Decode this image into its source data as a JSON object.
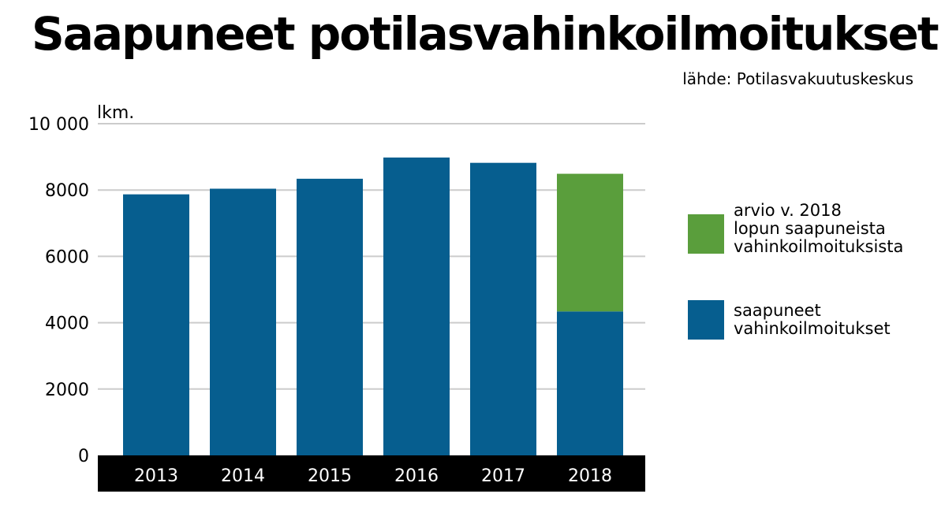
{
  "title": "Saapuneet potilasvahinkoilmoitukset",
  "source": "lähde: Potilasvakuutuskeskus",
  "colors": {
    "received": "#065e8f",
    "estimate": "#5a9e3c",
    "axis_band": "#000000",
    "grid": "#cccccc"
  },
  "legend": {
    "estimate_label": "arvio v. 2018\nlopun saapuneista\nvahinkoilmoituksista",
    "received_label": "saapuneet\nvahinkoilmoitukset"
  },
  "chart_data": {
    "type": "bar",
    "stacked": true,
    "categories": [
      "2013",
      "2014",
      "2015",
      "2016",
      "2017",
      "2018"
    ],
    "series": [
      {
        "name": "saapuneet vahinkoilmoitukset",
        "values": [
          7870,
          8040,
          8340,
          8980,
          8820,
          4340
        ]
      },
      {
        "name": "arvio v. 2018 lopun saapuneista vahinkoilmoituksista",
        "values": [
          0,
          0,
          0,
          0,
          0,
          4150
        ]
      }
    ],
    "ylabel": "lkm.",
    "ylim": [
      0,
      10000
    ],
    "yticks": [
      0,
      2000,
      4000,
      6000,
      8000,
      10000
    ],
    "ytick_labels": [
      "0",
      "2000",
      "4000",
      "6000",
      "8000",
      "10 000"
    ],
    "grid": true,
    "legend_position": "right"
  }
}
